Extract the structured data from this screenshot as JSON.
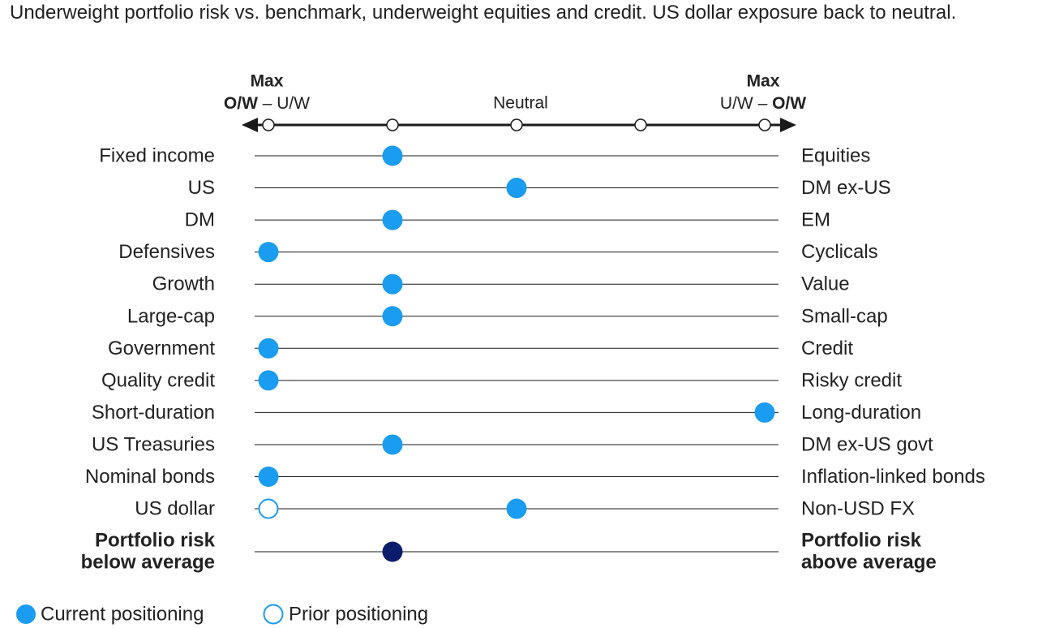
{
  "subtitle": "Underweight portfolio risk vs. benchmark, underweight equities and credit. US dollar exposure back to neutral.",
  "colors": {
    "current": "#1a9cf0",
    "risk": "#0c1c6c",
    "prior_fill": "#ffffff",
    "line": "#1a1a1a"
  },
  "chart_data": {
    "type": "scatter",
    "scale": {
      "positions": [
        -2,
        -1,
        0,
        1,
        2
      ],
      "left_heading": {
        "max": "Max",
        "bold": "O/W",
        "sep": " – ",
        "normal": "U/W"
      },
      "center_label": "Neutral",
      "right_heading": {
        "max": "Max",
        "normal": "U/W",
        "sep": " – ",
        "bold": "O/W"
      }
    },
    "rows": [
      {
        "left": "Fixed income",
        "right": "Equities",
        "current": -1,
        "prior": null
      },
      {
        "left": "US",
        "right": "DM ex-US",
        "current": 0,
        "prior": null
      },
      {
        "left": "DM",
        "right": "EM",
        "current": -1,
        "prior": null
      },
      {
        "left": "Defensives",
        "right": "Cyclicals",
        "current": -2,
        "prior": null
      },
      {
        "left": "Growth",
        "right": "Value",
        "current": -1,
        "prior": null
      },
      {
        "left": "Large-cap",
        "right": "Small-cap",
        "current": -1,
        "prior": null
      },
      {
        "left": "Government",
        "right": "Credit",
        "current": -2,
        "prior": null
      },
      {
        "left": "Quality credit",
        "right": "Risky credit",
        "current": -2,
        "prior": null
      },
      {
        "left": "Short-duration",
        "right": "Long-duration",
        "current": 2,
        "prior": null
      },
      {
        "left": "US Treasuries",
        "right": "DM ex-US govt",
        "current": -1,
        "prior": null
      },
      {
        "left": "Nominal bonds",
        "right": "Inflation-linked bonds",
        "current": -2,
        "prior": null
      },
      {
        "left": "US dollar",
        "right": "Non-USD FX",
        "current": 0,
        "prior": -2
      }
    ],
    "risk_row": {
      "left": [
        "Portfolio risk",
        "below average"
      ],
      "right": [
        "Portfolio risk",
        "above average"
      ],
      "current": -1
    },
    "legend": {
      "current": "Current positioning",
      "prior": "Prior positioning"
    }
  }
}
